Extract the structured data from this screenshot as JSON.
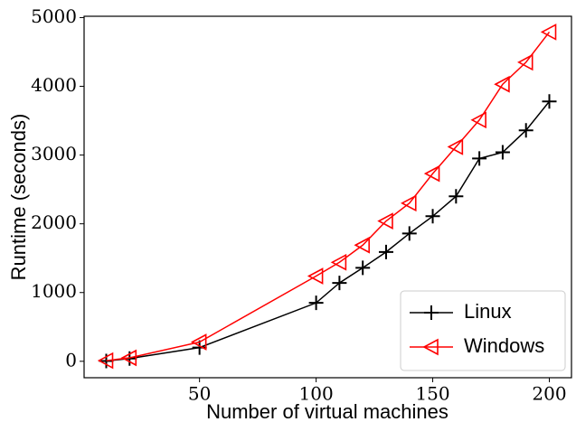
{
  "chart_data": {
    "type": "line",
    "x_label": "Number of virtual machines",
    "y_label": "Runtime (seconds)",
    "x": [
      10,
      20,
      50,
      100,
      110,
      120,
      130,
      140,
      150,
      160,
      170,
      180,
      190,
      200
    ],
    "series": [
      {
        "name": "Linux",
        "color": "#000000",
        "marker": "plus",
        "values": [
          5,
          40,
          200,
          850,
          1140,
          1360,
          1590,
          1860,
          2110,
          2400,
          2950,
          3040,
          3360,
          3780
        ]
      },
      {
        "name": "Windows",
        "color": "#ff0000",
        "marker": "triangle-left",
        "values": [
          10,
          50,
          280,
          1240,
          1440,
          1690,
          2040,
          2300,
          2730,
          3120,
          3510,
          4030,
          4350,
          4790
        ]
      }
    ],
    "xlim": [
      0.5,
      209.5
    ],
    "xticks": [
      50,
      100,
      150,
      200
    ],
    "ylim": [
      -239,
      5019
    ],
    "yticks": [
      0,
      1000,
      2000,
      3000,
      4000,
      5000
    ],
    "legend": "lower right"
  }
}
